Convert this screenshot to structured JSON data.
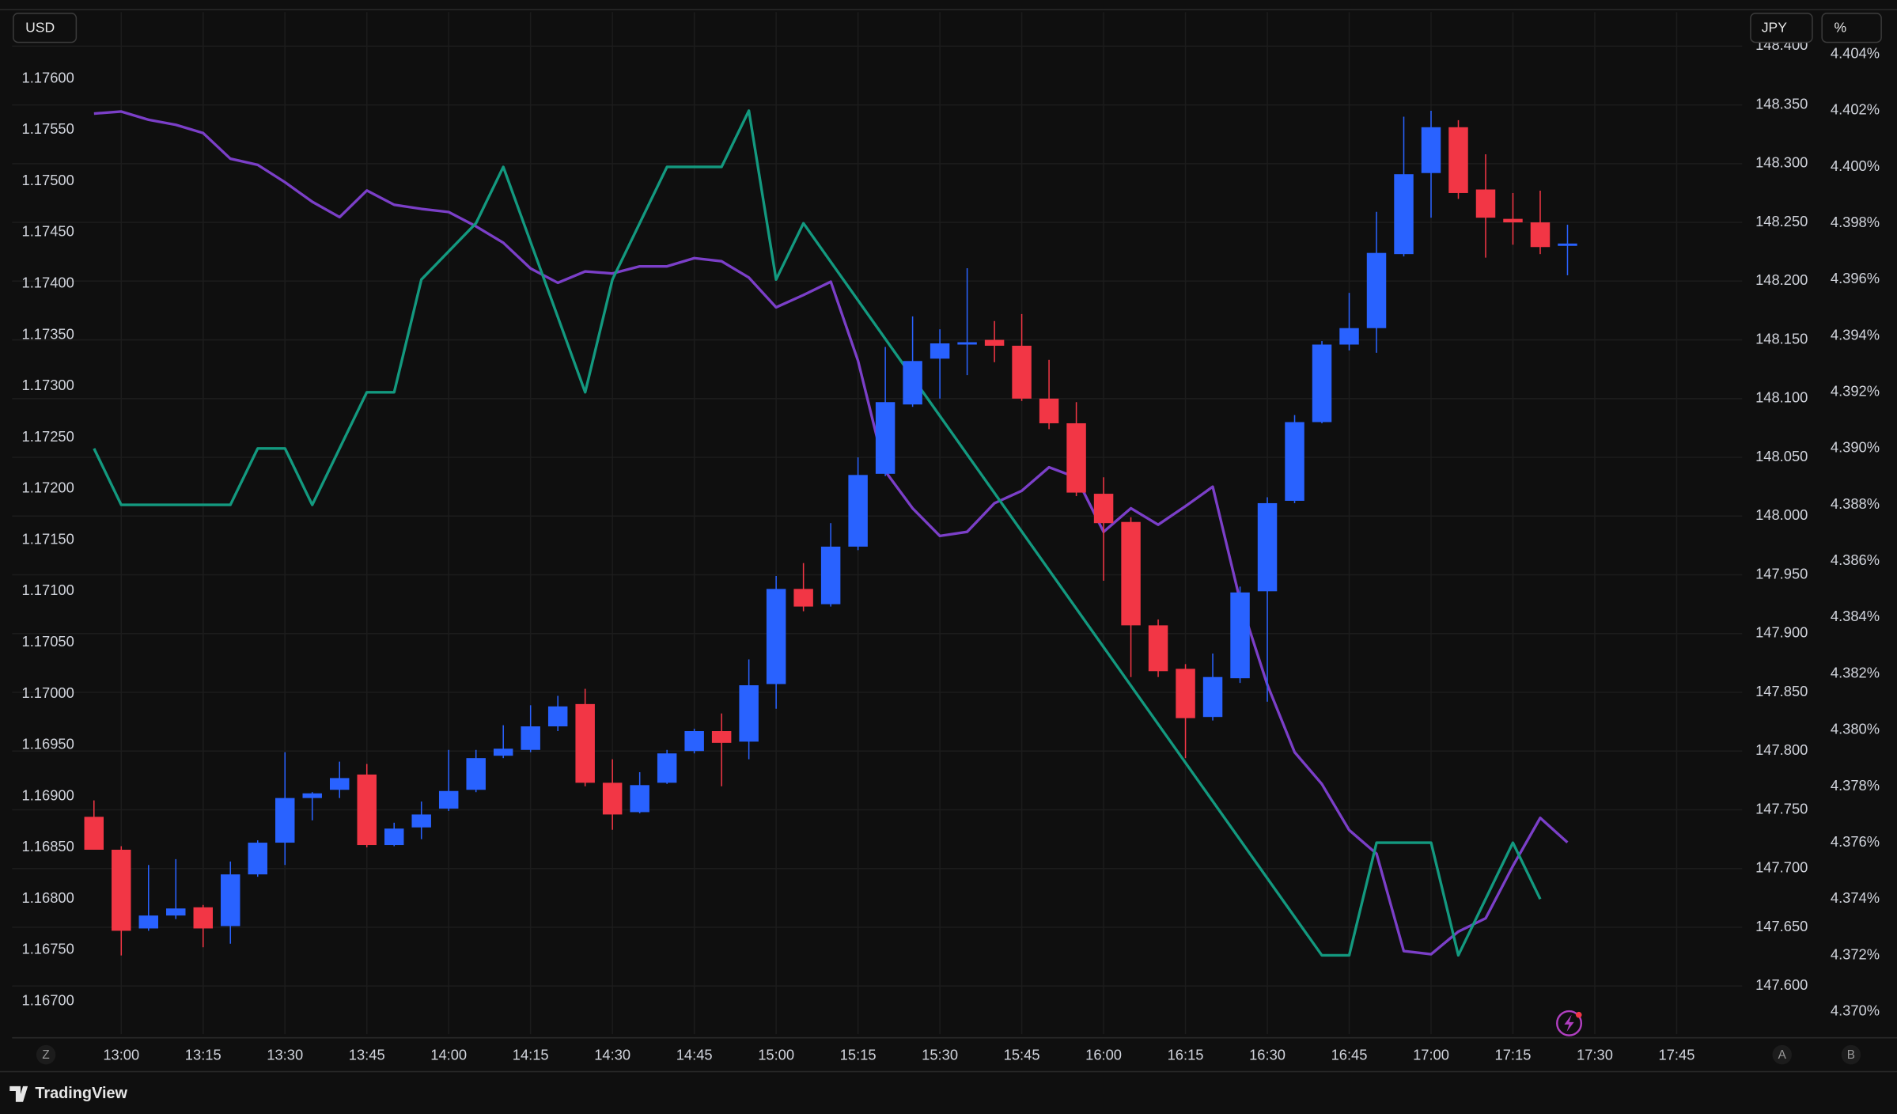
{
  "chart_data": {
    "type": "candlestick",
    "axis": "y2",
    "up_color": "#2962ff",
    "down_color": "#f23645",
    "x": [
      "12:55",
      "13:00",
      "13:05",
      "13:10",
      "13:15",
      "13:20",
      "13:25",
      "13:30",
      "13:35",
      "13:40",
      "13:45",
      "13:50",
      "13:55",
      "14:00",
      "14:05",
      "14:10",
      "14:15",
      "14:20",
      "14:25",
      "14:30",
      "14:35",
      "14:40",
      "14:45",
      "14:50",
      "14:55",
      "15:00",
      "15:05",
      "15:10",
      "15:15",
      "15:20",
      "15:25",
      "15:30",
      "15:35",
      "15:40",
      "15:45",
      "15:50",
      "15:55",
      "16:00",
      "16:05",
      "16:10",
      "16:15",
      "16:20",
      "16:25",
      "16:30",
      "16:35",
      "16:40",
      "16:45",
      "16:50",
      "16:55",
      "17:00",
      "17:05",
      "17:10",
      "17:15",
      "17:20",
      "17:25"
    ],
    "open": [
      147.744,
      147.716,
      147.649,
      147.66,
      147.667,
      147.651,
      147.695,
      147.722,
      147.76,
      147.767,
      147.78,
      147.72,
      147.735,
      147.751,
      147.767,
      147.796,
      147.801,
      147.821,
      147.84,
      147.773,
      147.748,
      147.773,
      147.8,
      147.817,
      147.808,
      147.857,
      147.938,
      147.925,
      147.974,
      148.036,
      148.095,
      148.134,
      148.146,
      148.15,
      148.145,
      148.1,
      148.079,
      148.019,
      147.995,
      147.907,
      147.87,
      147.829,
      147.862,
      147.936,
      148.013,
      148.08,
      148.146,
      148.16,
      148.223,
      148.292,
      148.331,
      148.278,
      148.253,
      148.25,
      148.23
    ],
    "high": [
      147.758,
      147.719,
      147.703,
      147.708,
      147.669,
      147.706,
      147.724,
      147.799,
      147.765,
      147.791,
      147.789,
      147.739,
      147.757,
      147.801,
      147.801,
      147.822,
      147.839,
      147.847,
      147.853,
      147.793,
      147.782,
      147.801,
      147.819,
      147.832,
      147.878,
      147.949,
      147.96,
      147.994,
      148.05,
      148.144,
      148.17,
      148.159,
      148.211,
      148.166,
      148.172,
      148.133,
      148.097,
      148.033,
      147.999,
      147.912,
      147.874,
      147.883,
      147.94,
      148.016,
      148.086,
      148.149,
      148.19,
      148.259,
      148.34,
      148.345,
      148.337,
      148.308,
      148.275,
      148.277,
      148.248
    ],
    "low": [
      147.716,
      147.626,
      147.647,
      147.657,
      147.633,
      147.636,
      147.693,
      147.703,
      147.741,
      147.76,
      147.718,
      147.719,
      147.725,
      147.749,
      147.765,
      147.794,
      147.799,
      147.817,
      147.77,
      147.733,
      147.747,
      147.772,
      147.798,
      147.77,
      147.793,
      147.836,
      147.919,
      147.923,
      147.971,
      148.034,
      148.093,
      148.1,
      148.12,
      148.131,
      148.098,
      148.074,
      148.017,
      147.945,
      147.863,
      147.863,
      147.794,
      147.826,
      147.858,
      147.842,
      148.011,
      148.079,
      148.141,
      148.139,
      148.221,
      148.254,
      148.27,
      148.22,
      148.231,
      148.223,
      148.205
    ],
    "close": [
      147.716,
      147.647,
      147.66,
      147.666,
      147.649,
      147.695,
      147.722,
      147.76,
      147.764,
      147.777,
      147.72,
      147.734,
      147.746,
      147.766,
      147.794,
      147.802,
      147.821,
      147.838,
      147.773,
      147.746,
      147.771,
      147.798,
      147.817,
      147.807,
      147.856,
      147.938,
      147.923,
      147.974,
      148.035,
      148.097,
      148.132,
      148.147,
      148.148,
      148.145,
      148.1,
      148.079,
      148.02,
      147.994,
      147.907,
      147.868,
      147.828,
      147.863,
      147.935,
      148.011,
      148.08,
      148.146,
      148.16,
      148.224,
      148.291,
      148.331,
      148.275,
      148.254,
      148.25,
      148.229,
      148.232
    ],
    "lines": [
      {
        "type": "line",
        "color": "#7b3fc8",
        "axis": "y",
        "values": [
          1.17566,
          1.17568,
          1.1756,
          1.17555,
          1.17547,
          1.17522,
          1.17516,
          1.17499,
          1.1748,
          1.17465,
          1.17491,
          1.17477,
          1.17473,
          1.1747,
          1.17456,
          1.1744,
          1.17415,
          1.17401,
          1.17412,
          1.1741,
          1.17417,
          1.17417,
          1.17425,
          1.17422,
          1.17406,
          1.17377,
          1.17389,
          1.17402,
          1.17325,
          1.17217,
          1.17181,
          1.17154,
          1.17158,
          1.17186,
          1.17198,
          1.17221,
          1.17211,
          1.17158,
          1.17181,
          1.17165,
          1.17183,
          1.17202,
          1.17091,
          1.17009,
          1.16943,
          1.16912,
          1.16867,
          1.16844,
          1.16749,
          1.16746,
          1.16768,
          1.16781,
          1.16832,
          1.16879,
          1.16855
        ]
      },
      {
        "type": "line",
        "color": "#13997f",
        "axis": "y3",
        "x": [
          "12:55",
          "13:00",
          "13:20",
          "13:25",
          "13:30",
          "13:35",
          "13:45",
          "13:50",
          "13:55",
          "14:05",
          "14:10",
          "14:25",
          "14:30",
          "14:40",
          "14:50",
          "14:55",
          "15:00",
          "15:05",
          "16:40",
          "16:45",
          "16:50",
          "17:00",
          "17:05",
          "17:15",
          "17:20"
        ],
        "values": [
          4.39,
          4.388,
          4.388,
          4.39,
          4.39,
          4.388,
          4.392,
          4.392,
          4.396,
          4.398,
          4.4,
          4.392,
          4.396,
          4.4,
          4.4,
          4.402,
          4.396,
          4.398,
          4.372,
          4.372,
          4.376,
          4.376,
          4.372,
          4.376,
          4.374
        ]
      }
    ],
    "xlim": [
      "12:40",
      "17:57"
    ],
    "xticks": [
      "13:00",
      "13:15",
      "13:30",
      "13:45",
      "14:00",
      "14:15",
      "14:30",
      "14:45",
      "15:00",
      "15:15",
      "15:30",
      "15:45",
      "16:00",
      "16:15",
      "16:30",
      "16:45",
      "17:00",
      "17:15",
      "17:30",
      "17:45"
    ],
    "ylabel": "USD",
    "ylim": [
      1.16668,
      1.17665
    ],
    "yticks": [
      {
        "value": 1.176,
        "label": "1.17600"
      },
      {
        "value": 1.1755,
        "label": "1.17550"
      },
      {
        "value": 1.175,
        "label": "1.17500"
      },
      {
        "value": 1.1745,
        "label": "1.17450"
      },
      {
        "value": 1.174,
        "label": "1.17400"
      },
      {
        "value": 1.1735,
        "label": "1.17350"
      },
      {
        "value": 1.173,
        "label": "1.17300"
      },
      {
        "value": 1.1725,
        "label": "1.17250"
      },
      {
        "value": 1.172,
        "label": "1.17200"
      },
      {
        "value": 1.1715,
        "label": "1.17150"
      },
      {
        "value": 1.171,
        "label": "1.17100"
      },
      {
        "value": 1.1705,
        "label": "1.17050"
      },
      {
        "value": 1.17,
        "label": "1.17000"
      },
      {
        "value": 1.1695,
        "label": "1.16950"
      },
      {
        "value": 1.169,
        "label": "1.16900"
      },
      {
        "value": 1.1685,
        "label": "1.16850"
      },
      {
        "value": 1.168,
        "label": "1.16800"
      },
      {
        "value": 1.1675,
        "label": "1.16750"
      },
      {
        "value": 1.167,
        "label": "1.16700"
      }
    ],
    "y2label": "JPY",
    "y2lim": [
      147.559,
      148.429
    ],
    "y2ticks": [
      {
        "value": 148.4,
        "label": "148.400"
      },
      {
        "value": 148.35,
        "label": "148.350"
      },
      {
        "value": 148.3,
        "label": "148.300"
      },
      {
        "value": 148.25,
        "label": "148.250"
      },
      {
        "value": 148.2,
        "label": "148.200"
      },
      {
        "value": 148.15,
        "label": "148.150"
      },
      {
        "value": 148.1,
        "label": "148.100"
      },
      {
        "value": 148.05,
        "label": "148.050"
      },
      {
        "value": 148,
        "label": "148.000"
      },
      {
        "value": 147.95,
        "label": "147.950"
      },
      {
        "value": 147.9,
        "label": "147.900"
      },
      {
        "value": 147.85,
        "label": "147.850"
      },
      {
        "value": 147.8,
        "label": "147.800"
      },
      {
        "value": 147.75,
        "label": "147.750"
      },
      {
        "value": 147.7,
        "label": "147.700"
      },
      {
        "value": 147.65,
        "label": "147.650"
      },
      {
        "value": 147.6,
        "label": "147.600"
      }
    ],
    "y3label": "%",
    "y3lim": [
      4.3692,
      4.4055
    ],
    "y3ticks": [
      {
        "value": 4.404,
        "label": "4.404%"
      },
      {
        "value": 4.402,
        "label": "4.402%"
      },
      {
        "value": 4.4,
        "label": "4.400%"
      },
      {
        "value": 4.398,
        "label": "4.398%"
      },
      {
        "value": 4.396,
        "label": "4.396%"
      },
      {
        "value": 4.394,
        "label": "4.394%"
      },
      {
        "value": 4.392,
        "label": "4.392%"
      },
      {
        "value": 4.39,
        "label": "4.390%"
      },
      {
        "value": 4.388,
        "label": "4.388%"
      },
      {
        "value": 4.386,
        "label": "4.386%"
      },
      {
        "value": 4.384,
        "label": "4.384%"
      },
      {
        "value": 4.382,
        "label": "4.382%"
      },
      {
        "value": 4.38,
        "label": "4.380%"
      },
      {
        "value": 4.378,
        "label": "4.378%"
      },
      {
        "value": 4.376,
        "label": "4.376%"
      },
      {
        "value": 4.374,
        "label": "4.374%"
      },
      {
        "value": 4.372,
        "label": "4.372%"
      },
      {
        "value": 4.37,
        "label": "4.370%"
      }
    ],
    "grid": true
  },
  "ui": {
    "buttons": [
      "Z",
      "A",
      "B"
    ],
    "brand": "TradingView"
  }
}
